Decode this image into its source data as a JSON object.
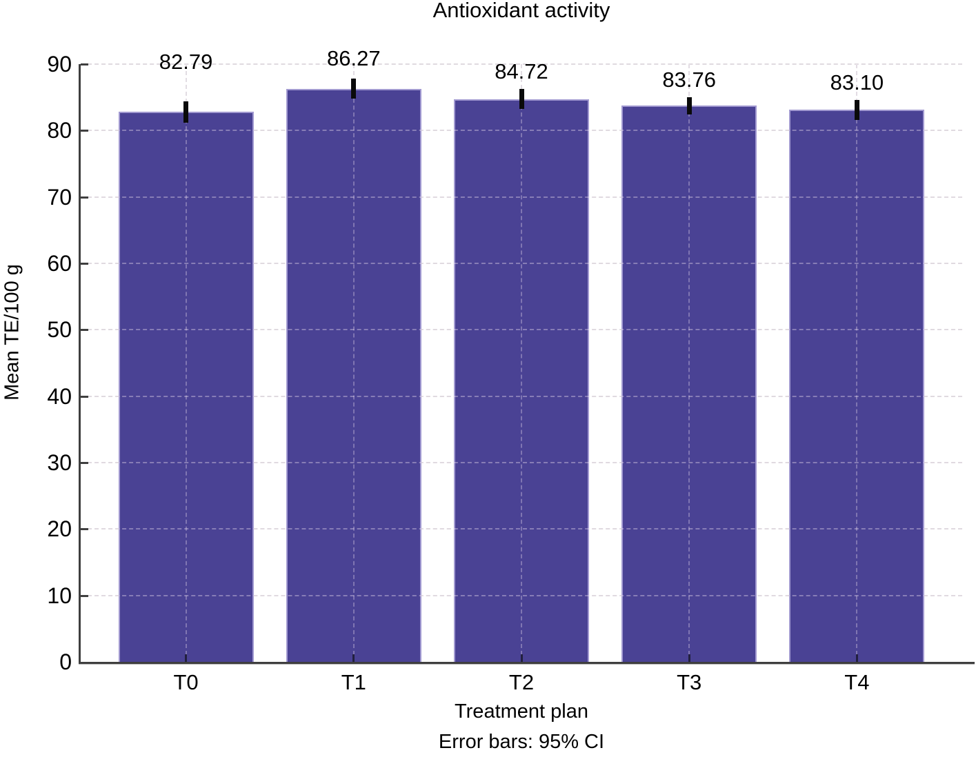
{
  "chart_data": {
    "type": "bar",
    "title": "Antioxidant activity",
    "xlabel": "Treatment plan",
    "ylabel": "Mean TE/100 g",
    "caption": "Error bars: 95% CI",
    "categories": [
      "T0",
      "T1",
      "T2",
      "T3",
      "T4"
    ],
    "values": [
      82.79,
      86.27,
      84.72,
      83.76,
      83.1
    ],
    "value_labels": [
      "82.79",
      "86.27",
      "84.72",
      "83.76",
      "83.10"
    ],
    "errors_95ci": [
      1.6,
      1.5,
      1.5,
      1.3,
      1.5
    ],
    "ylim": [
      0,
      90
    ],
    "ytick_step": 10,
    "yticks": [
      0,
      10,
      20,
      30,
      40,
      50,
      60,
      70,
      80,
      90
    ],
    "grid": "dashed horizontal and vertical",
    "legend": null,
    "colors": {
      "bar_fill": "#4a4294",
      "bar_border": "#a29ad1",
      "axis": "#3f3f3f",
      "grid": "#d0cfd4",
      "error_bar": "#0a0a0a",
      "text": "#000000",
      "background": "#ffffff"
    }
  }
}
